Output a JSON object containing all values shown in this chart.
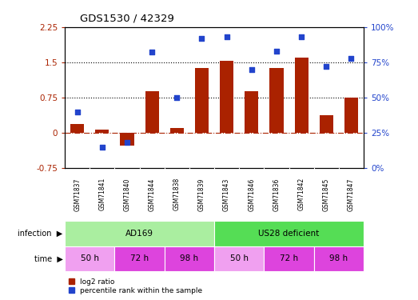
{
  "title": "GDS1530 / 42329",
  "samples": [
    "GSM71837",
    "GSM71841",
    "GSM71840",
    "GSM71844",
    "GSM71838",
    "GSM71839",
    "GSM71843",
    "GSM71846",
    "GSM71836",
    "GSM71842",
    "GSM71845",
    "GSM71847"
  ],
  "log2_ratio": [
    0.18,
    0.07,
    -0.28,
    0.88,
    0.1,
    1.38,
    1.53,
    0.88,
    1.38,
    1.6,
    0.38,
    0.75
  ],
  "percentile_rank": [
    40,
    15,
    18,
    82,
    50,
    92,
    93,
    70,
    83,
    93,
    72,
    78
  ],
  "bar_color": "#aa2200",
  "dot_color": "#2244cc",
  "ylim_left": [
    -0.75,
    2.25
  ],
  "ylim_right": [
    0,
    100
  ],
  "yticks_left": [
    -0.75,
    0,
    0.75,
    1.5,
    2.25
  ],
  "yticks_right": [
    0,
    25,
    50,
    75,
    100
  ],
  "ytick_labels_left": [
    "-0.75",
    "0",
    "0.75",
    "1.5",
    "2.25"
  ],
  "ytick_labels_right": [
    "0%",
    "25%",
    "50%",
    "75%",
    "100%"
  ],
  "hlines": [
    0.75,
    1.5
  ],
  "zero_line": 0.0,
  "infection_labels": [
    {
      "text": "AD169",
      "start": 0,
      "end": 6,
      "color": "#aaeea0"
    },
    {
      "text": "US28 deficient",
      "start": 6,
      "end": 12,
      "color": "#55dd55"
    }
  ],
  "time_labels": [
    {
      "text": "50 h",
      "start": 0,
      "end": 2,
      "color": "#f0a0f0"
    },
    {
      "text": "72 h",
      "start": 2,
      "end": 4,
      "color": "#dd44dd"
    },
    {
      "text": "98 h",
      "start": 4,
      "end": 6,
      "color": "#dd44dd"
    },
    {
      "text": "50 h",
      "start": 6,
      "end": 8,
      "color": "#f0a0f0"
    },
    {
      "text": "72 h",
      "start": 8,
      "end": 10,
      "color": "#dd44dd"
    },
    {
      "text": "98 h",
      "start": 10,
      "end": 12,
      "color": "#dd44dd"
    }
  ],
  "legend_items": [
    {
      "label": "log2 ratio",
      "color": "#aa2200"
    },
    {
      "label": "percentile rank within the sample",
      "color": "#2244cc"
    }
  ],
  "infection_arrow_label": "infection",
  "time_arrow_label": "time",
  "background_color": "#ffffff",
  "axis_bg_color": "#ffffff",
  "gsm_bg_color": "#cccccc"
}
